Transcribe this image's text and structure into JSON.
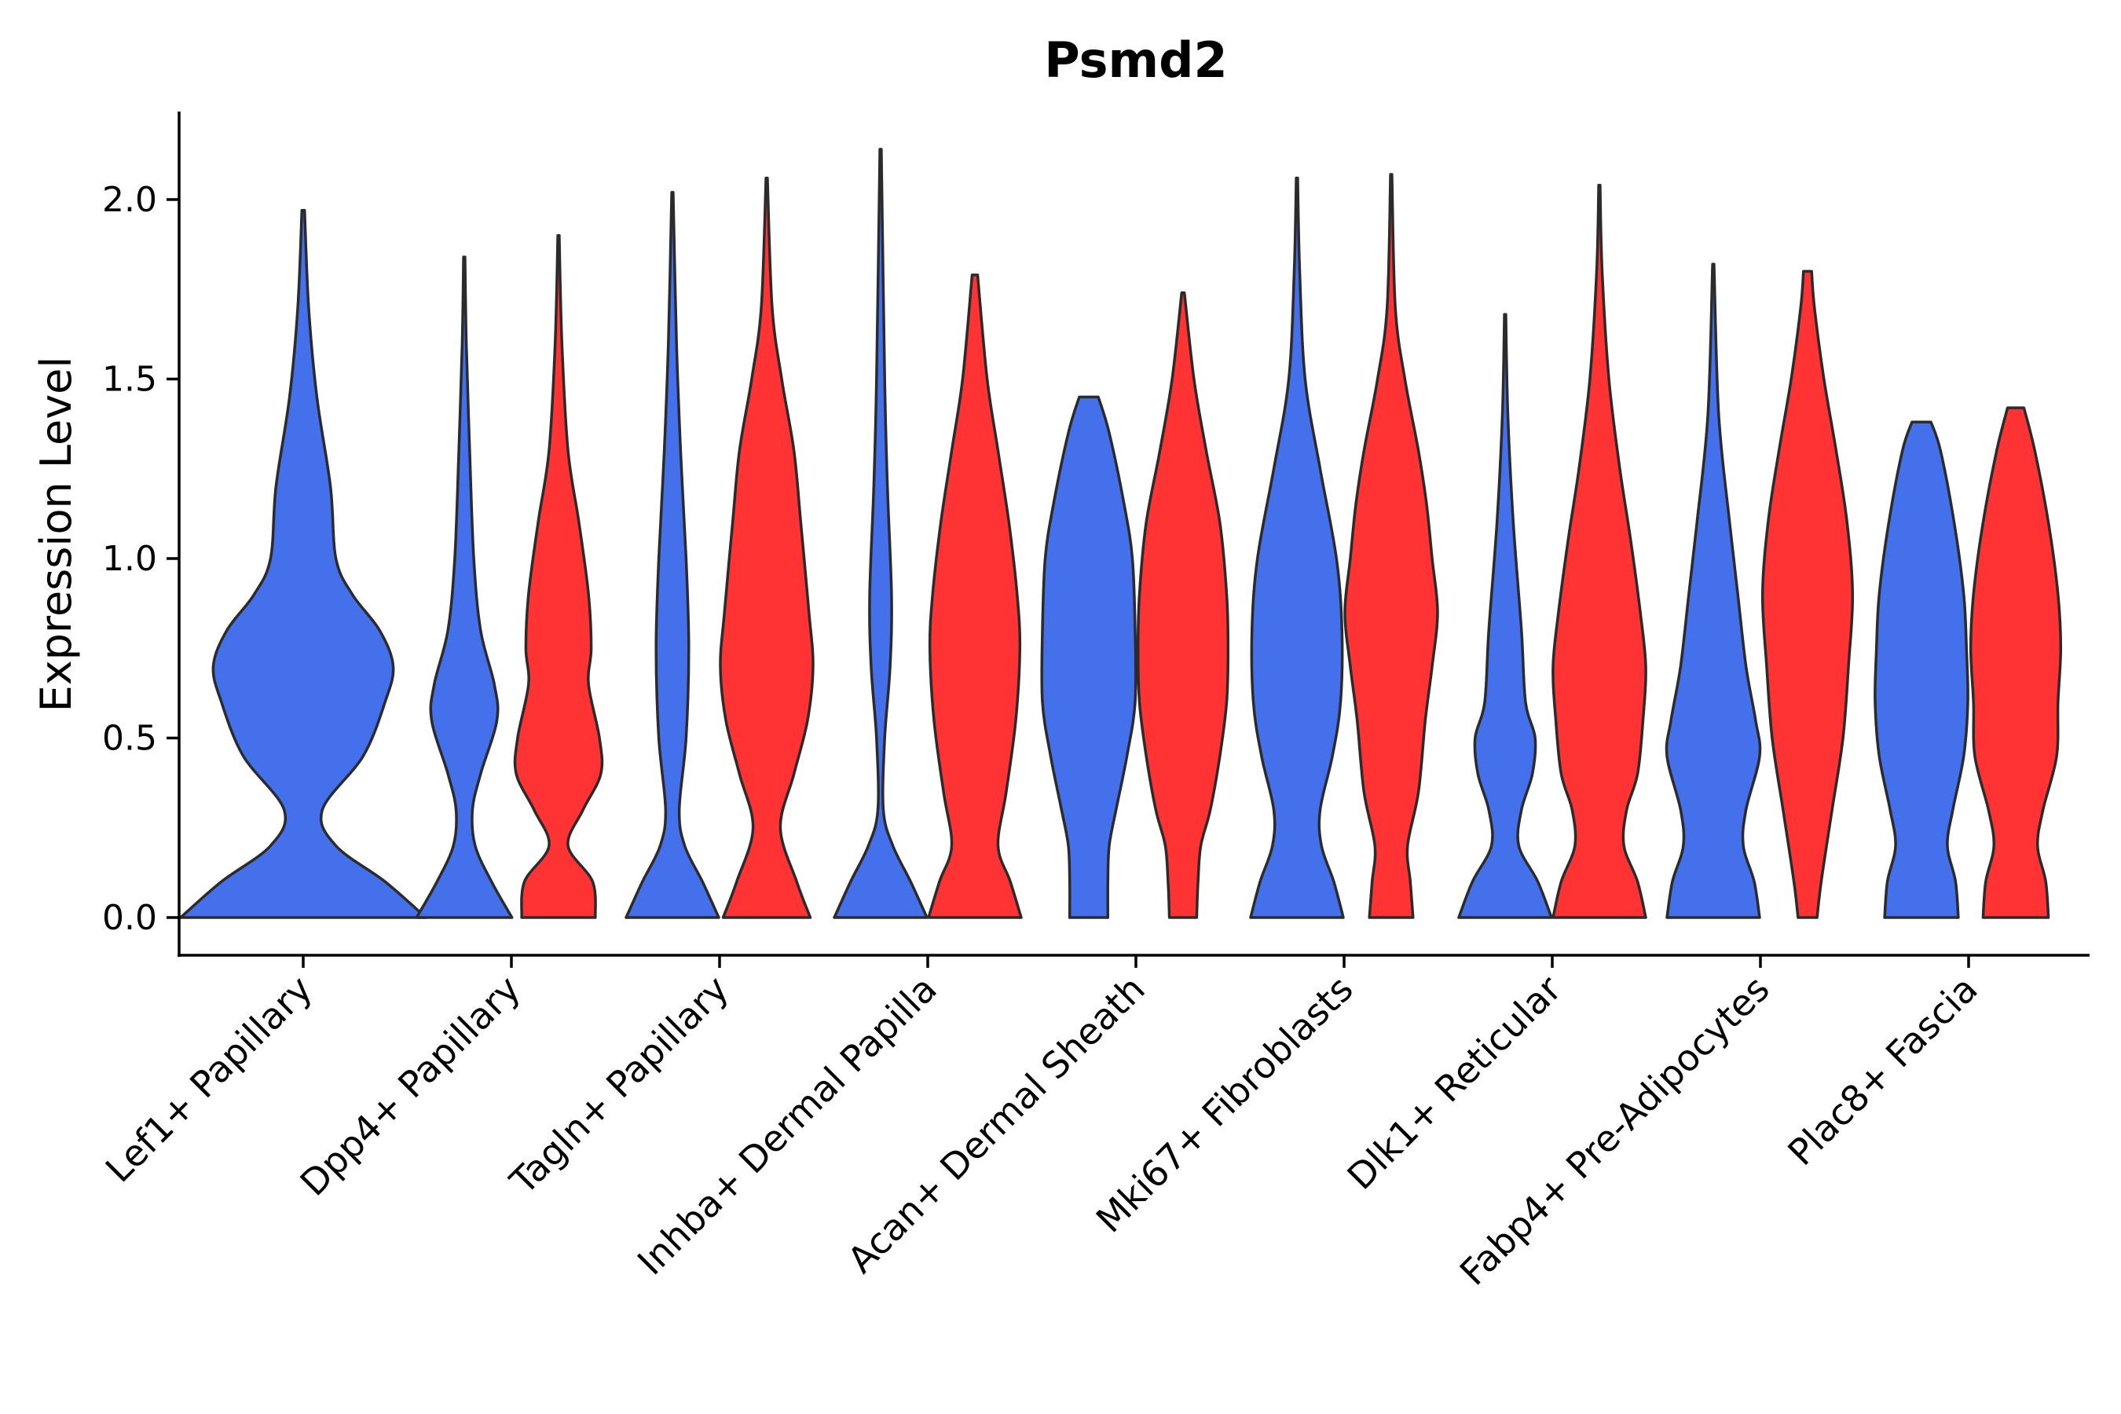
{
  "chart_data": {
    "type": "violin",
    "title": "Psmd2",
    "xlabel": "",
    "ylabel": "Expression Level",
    "ylim": [
      -0.1,
      2.2
    ],
    "yticks": [
      "0.0",
      "0.5",
      "1.0",
      "1.5",
      "2.0"
    ],
    "ytick_values": [
      0,
      0.5,
      1.0,
      1.5,
      2.0
    ],
    "series_colors": [
      "#4570EB",
      "#FF3333"
    ],
    "categories": [
      "Lef1+ Papillary",
      "Dpp4+ Papillary",
      "Tagln+ Papillary",
      "Inhba+ Dermal Papilla",
      "Acan+ Dermal Sheath",
      "Mki67+ Fibroblasts",
      "Dlk1+ Reticular",
      "Fabp4+ Pre-Adipocytes",
      "Plac8+ Fascia"
    ],
    "violins": [
      {
        "category": "Lef1+ Papillary",
        "group": 0,
        "max": 1.97,
        "density": [
          [
            0,
            0.45
          ],
          [
            0.1,
            0.3
          ],
          [
            0.2,
            0.12
          ],
          [
            0.3,
            0.07
          ],
          [
            0.45,
            0.22
          ],
          [
            0.6,
            0.3
          ],
          [
            0.7,
            0.33
          ],
          [
            0.8,
            0.28
          ],
          [
            0.9,
            0.18
          ],
          [
            1.0,
            0.12
          ],
          [
            1.2,
            0.1
          ],
          [
            1.45,
            0.05
          ],
          [
            1.7,
            0.02
          ],
          [
            1.97,
            0.005
          ]
        ]
      },
      {
        "category": "Dpp4+ Papillary",
        "group": 0,
        "max": 1.84,
        "density": [
          [
            0,
            0.35
          ],
          [
            0.1,
            0.2
          ],
          [
            0.2,
            0.08
          ],
          [
            0.3,
            0.06
          ],
          [
            0.4,
            0.12
          ],
          [
            0.55,
            0.24
          ],
          [
            0.65,
            0.22
          ],
          [
            0.8,
            0.12
          ],
          [
            1.0,
            0.07
          ],
          [
            1.3,
            0.04
          ],
          [
            1.6,
            0.015
          ],
          [
            1.84,
            0.005
          ]
        ]
      },
      {
        "category": "Dpp4+ Papillary",
        "group": 1,
        "max": 1.9,
        "density": [
          [
            0,
            0.27
          ],
          [
            0.1,
            0.25
          ],
          [
            0.2,
            0.07
          ],
          [
            0.3,
            0.18
          ],
          [
            0.4,
            0.31
          ],
          [
            0.5,
            0.3
          ],
          [
            0.65,
            0.22
          ],
          [
            0.75,
            0.24
          ],
          [
            0.9,
            0.22
          ],
          [
            1.1,
            0.15
          ],
          [
            1.3,
            0.07
          ],
          [
            1.6,
            0.025
          ],
          [
            1.9,
            0.005
          ]
        ]
      },
      {
        "category": "Tagln+ Papillary",
        "group": 0,
        "max": 2.02,
        "density": [
          [
            0,
            0.34
          ],
          [
            0.1,
            0.22
          ],
          [
            0.2,
            0.09
          ],
          [
            0.3,
            0.05
          ],
          [
            0.5,
            0.1
          ],
          [
            0.75,
            0.12
          ],
          [
            1.0,
            0.1
          ],
          [
            1.3,
            0.06
          ],
          [
            1.6,
            0.03
          ],
          [
            2.02,
            0.005
          ]
        ]
      },
      {
        "category": "Tagln+ Papillary",
        "group": 1,
        "max": 2.06,
        "density": [
          [
            0,
            0.32
          ],
          [
            0.1,
            0.22
          ],
          [
            0.25,
            0.1
          ],
          [
            0.4,
            0.2
          ],
          [
            0.55,
            0.3
          ],
          [
            0.7,
            0.34
          ],
          [
            0.85,
            0.31
          ],
          [
            1.1,
            0.25
          ],
          [
            1.3,
            0.2
          ],
          [
            1.5,
            0.11
          ],
          [
            1.7,
            0.04
          ],
          [
            2.06,
            0.005
          ]
        ]
      },
      {
        "category": "Inhba+ Dermal Papilla",
        "group": 0,
        "max": 2.14,
        "density": [
          [
            0,
            0.34
          ],
          [
            0.1,
            0.22
          ],
          [
            0.2,
            0.09
          ],
          [
            0.3,
            0.02
          ],
          [
            0.5,
            0.03
          ],
          [
            0.7,
            0.07
          ],
          [
            0.9,
            0.08
          ],
          [
            1.2,
            0.05
          ],
          [
            1.5,
            0.03
          ],
          [
            2.14,
            0.005
          ]
        ]
      },
      {
        "category": "Inhba+ Dermal Papilla",
        "group": 1,
        "max": 1.79,
        "density": [
          [
            0,
            0.34
          ],
          [
            0.1,
            0.26
          ],
          [
            0.2,
            0.17
          ],
          [
            0.35,
            0.23
          ],
          [
            0.55,
            0.3
          ],
          [
            0.75,
            0.33
          ],
          [
            0.9,
            0.31
          ],
          [
            1.1,
            0.25
          ],
          [
            1.3,
            0.17
          ],
          [
            1.5,
            0.09
          ],
          [
            1.79,
            0.02
          ]
        ]
      },
      {
        "category": "Acan+ Dermal Sheath",
        "group": 0,
        "max": 1.45,
        "density": [
          [
            0,
            0.14
          ],
          [
            0.1,
            0.14
          ],
          [
            0.2,
            0.15
          ],
          [
            0.3,
            0.2
          ],
          [
            0.45,
            0.28
          ],
          [
            0.6,
            0.34
          ],
          [
            0.8,
            0.34
          ],
          [
            1.0,
            0.32
          ],
          [
            1.15,
            0.26
          ],
          [
            1.35,
            0.15
          ],
          [
            1.45,
            0.07
          ]
        ]
      },
      {
        "category": "Acan+ Dermal Sheath",
        "group": 1,
        "max": 1.74,
        "density": [
          [
            0,
            0.1
          ],
          [
            0.1,
            0.11
          ],
          [
            0.2,
            0.13
          ],
          [
            0.3,
            0.2
          ],
          [
            0.45,
            0.27
          ],
          [
            0.6,
            0.32
          ],
          [
            0.75,
            0.33
          ],
          [
            0.9,
            0.32
          ],
          [
            1.1,
            0.27
          ],
          [
            1.3,
            0.17
          ],
          [
            1.5,
            0.08
          ],
          [
            1.74,
            0.01
          ]
        ]
      },
      {
        "category": "Mki67+ Fibroblasts",
        "group": 0,
        "max": 2.06,
        "density": [
          [
            0,
            0.34
          ],
          [
            0.1,
            0.27
          ],
          [
            0.2,
            0.18
          ],
          [
            0.3,
            0.17
          ],
          [
            0.45,
            0.26
          ],
          [
            0.6,
            0.32
          ],
          [
            0.8,
            0.33
          ],
          [
            1.0,
            0.29
          ],
          [
            1.25,
            0.17
          ],
          [
            1.5,
            0.06
          ],
          [
            1.8,
            0.02
          ],
          [
            2.06,
            0.005
          ]
        ]
      },
      {
        "category": "Mki67+ Fibroblasts",
        "group": 1,
        "max": 2.07,
        "density": [
          [
            0,
            0.16
          ],
          [
            0.1,
            0.14
          ],
          [
            0.2,
            0.12
          ],
          [
            0.35,
            0.2
          ],
          [
            0.55,
            0.25
          ],
          [
            0.7,
            0.3
          ],
          [
            0.85,
            0.34
          ],
          [
            1.0,
            0.3
          ],
          [
            1.15,
            0.26
          ],
          [
            1.3,
            0.2
          ],
          [
            1.5,
            0.1
          ],
          [
            1.7,
            0.03
          ],
          [
            2.07,
            0.005
          ]
        ]
      },
      {
        "category": "Dlk1+ Reticular",
        "group": 0,
        "max": 1.68,
        "density": [
          [
            0,
            0.34
          ],
          [
            0.1,
            0.24
          ],
          [
            0.2,
            0.1
          ],
          [
            0.3,
            0.12
          ],
          [
            0.4,
            0.2
          ],
          [
            0.5,
            0.22
          ],
          [
            0.6,
            0.15
          ],
          [
            0.8,
            0.12
          ],
          [
            1.1,
            0.06
          ],
          [
            1.4,
            0.02
          ],
          [
            1.68,
            0.005
          ]
        ]
      },
      {
        "category": "Dlk1+ Reticular",
        "group": 1,
        "max": 2.04,
        "density": [
          [
            0,
            0.34
          ],
          [
            0.1,
            0.28
          ],
          [
            0.2,
            0.18
          ],
          [
            0.3,
            0.2
          ],
          [
            0.4,
            0.28
          ],
          [
            0.55,
            0.32
          ],
          [
            0.7,
            0.34
          ],
          [
            0.85,
            0.3
          ],
          [
            1.05,
            0.23
          ],
          [
            1.25,
            0.15
          ],
          [
            1.5,
            0.07
          ],
          [
            1.8,
            0.02
          ],
          [
            2.04,
            0.005
          ]
        ]
      },
      {
        "category": "Fabp4+ Pre-Adipocytes",
        "group": 0,
        "max": 1.82,
        "density": [
          [
            0,
            0.34
          ],
          [
            0.1,
            0.3
          ],
          [
            0.2,
            0.22
          ],
          [
            0.3,
            0.24
          ],
          [
            0.45,
            0.34
          ],
          [
            0.55,
            0.31
          ],
          [
            0.7,
            0.24
          ],
          [
            0.9,
            0.18
          ],
          [
            1.1,
            0.12
          ],
          [
            1.4,
            0.04
          ],
          [
            1.82,
            0.005
          ]
        ]
      },
      {
        "category": "Fabp4+ Pre-Adipocytes",
        "group": 1,
        "max": 1.8,
        "density": [
          [
            0,
            0.07
          ],
          [
            0.1,
            0.1
          ],
          [
            0.3,
            0.18
          ],
          [
            0.5,
            0.26
          ],
          [
            0.7,
            0.3
          ],
          [
            0.9,
            0.33
          ],
          [
            1.1,
            0.29
          ],
          [
            1.3,
            0.21
          ],
          [
            1.5,
            0.12
          ],
          [
            1.7,
            0.05
          ],
          [
            1.8,
            0.03
          ]
        ]
      },
      {
        "category": "Plac8+ Fascia",
        "group": 0,
        "max": 1.38,
        "density": [
          [
            0,
            0.27
          ],
          [
            0.1,
            0.25
          ],
          [
            0.2,
            0.19
          ],
          [
            0.3,
            0.23
          ],
          [
            0.45,
            0.31
          ],
          [
            0.6,
            0.34
          ],
          [
            0.75,
            0.33
          ],
          [
            0.9,
            0.31
          ],
          [
            1.1,
            0.24
          ],
          [
            1.3,
            0.14
          ],
          [
            1.38,
            0.07
          ]
        ]
      },
      {
        "category": "Plac8+ Fascia",
        "group": 1,
        "max": 1.42,
        "density": [
          [
            0,
            0.24
          ],
          [
            0.1,
            0.22
          ],
          [
            0.2,
            0.16
          ],
          [
            0.3,
            0.2
          ],
          [
            0.45,
            0.3
          ],
          [
            0.6,
            0.31
          ],
          [
            0.75,
            0.33
          ],
          [
            0.9,
            0.31
          ],
          [
            1.1,
            0.24
          ],
          [
            1.3,
            0.14
          ],
          [
            1.42,
            0.06
          ]
        ]
      }
    ]
  }
}
